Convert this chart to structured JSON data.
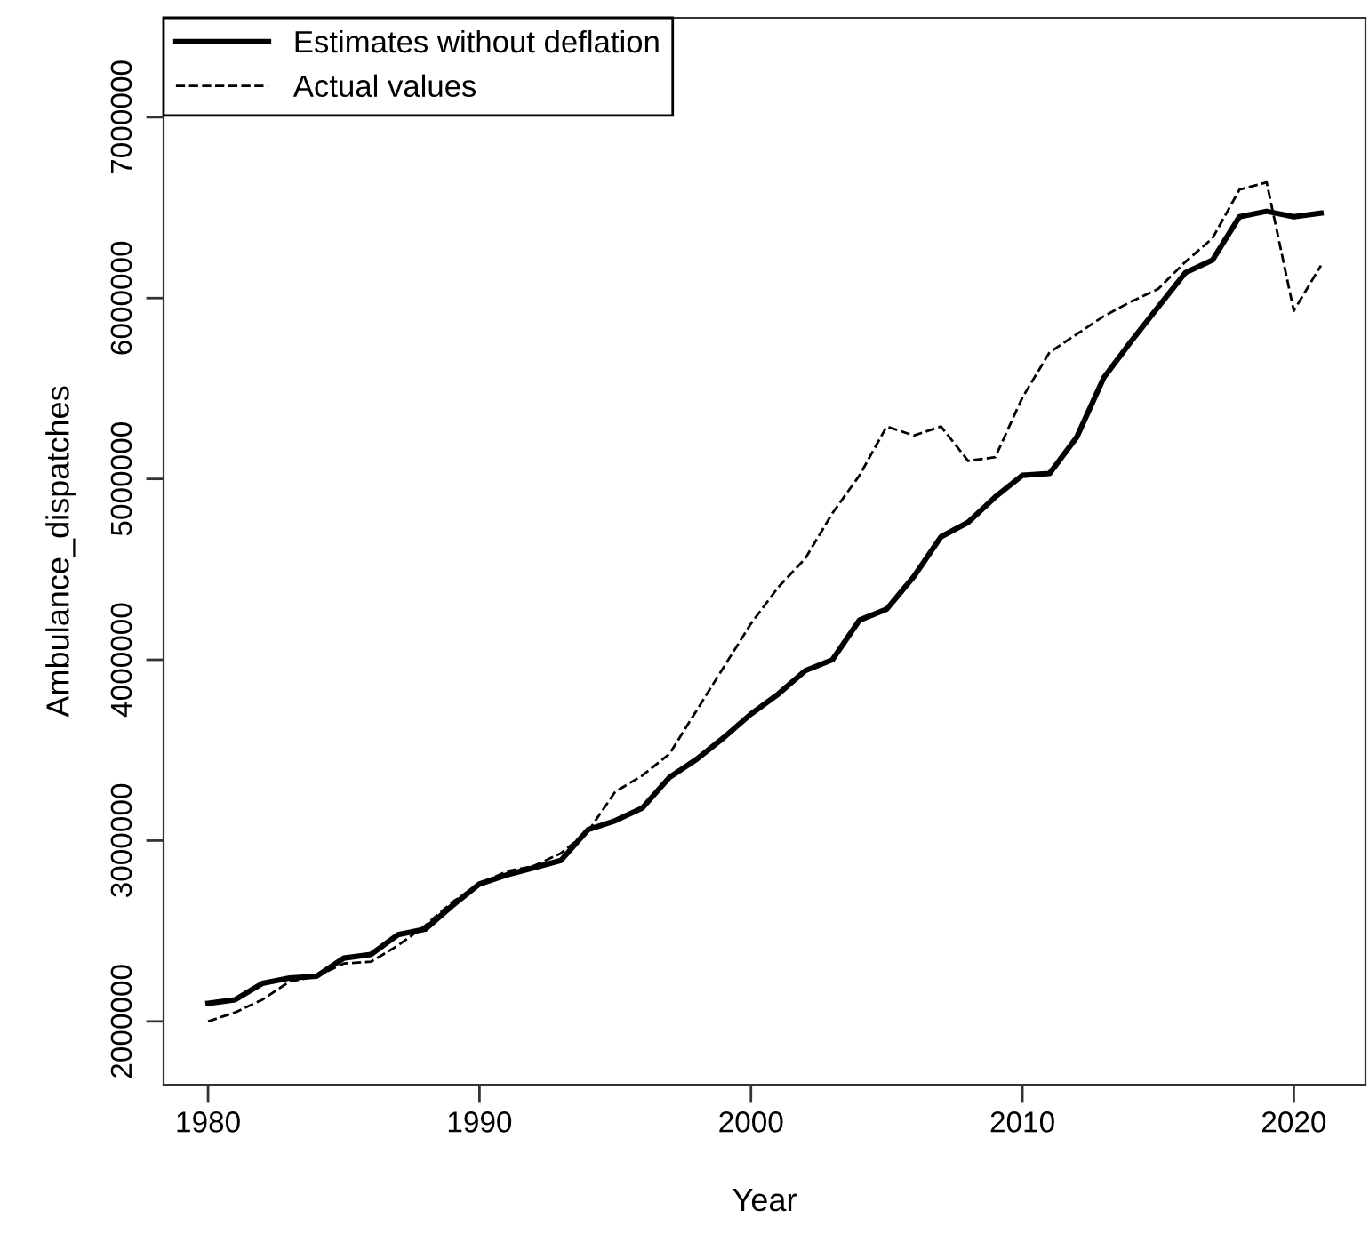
{
  "chart_data": {
    "type": "line",
    "xlabel": "Year",
    "ylabel": "Ambulance_dispatches",
    "x": [
      1980,
      1981,
      1982,
      1983,
      1984,
      1985,
      1986,
      1987,
      1988,
      1989,
      1990,
      1991,
      1992,
      1993,
      1994,
      1995,
      1996,
      1997,
      1998,
      1999,
      2000,
      2001,
      2002,
      2003,
      2004,
      2005,
      2006,
      2007,
      2008,
      2009,
      2010,
      2011,
      2012,
      2013,
      2014,
      2015,
      2016,
      2017,
      2018,
      2019,
      2020,
      2021
    ],
    "series": [
      {
        "name": "Estimates without deflation",
        "color": "#000000",
        "line_style": "solid",
        "values": [
          2100000,
          2120000,
          2210000,
          2240000,
          2250000,
          2350000,
          2370000,
          2480000,
          2510000,
          2640000,
          2760000,
          2810000,
          2850000,
          2890000,
          3060000,
          3110000,
          3180000,
          3350000,
          3450000,
          3570000,
          3700000,
          3810000,
          3940000,
          4000000,
          4220000,
          4280000,
          4460000,
          4680000,
          4760000,
          4900000,
          5020000,
          5030000,
          5230000,
          5560000,
          5760000,
          5950000,
          6140000,
          6210000,
          6450000,
          6480000,
          6450000,
          6470000
        ]
      },
      {
        "name": "Actual values",
        "color": "#000000",
        "line_style": "dashed",
        "values": [
          2000000,
          2050000,
          2120000,
          2220000,
          2250000,
          2320000,
          2330000,
          2420000,
          2530000,
          2660000,
          2760000,
          2830000,
          2860000,
          2930000,
          3050000,
          3270000,
          3360000,
          3480000,
          3720000,
          3960000,
          4200000,
          4400000,
          4560000,
          4810000,
          5020000,
          5290000,
          5240000,
          5290000,
          5100000,
          5120000,
          5450000,
          5700000,
          5800000,
          5900000,
          5980000,
          6050000,
          6200000,
          6330000,
          6600000,
          6640000,
          5930000,
          6180000
        ]
      }
    ],
    "xlim": [
      1978.36,
      2022.64
    ],
    "ylim": [
      1650000,
      7550000
    ],
    "xticks": [
      1980,
      1990,
      2000,
      2010,
      2020
    ],
    "yticks": [
      2000000,
      3000000,
      4000000,
      5000000,
      6000000,
      7000000
    ],
    "grid": false,
    "legend": "top left"
  }
}
